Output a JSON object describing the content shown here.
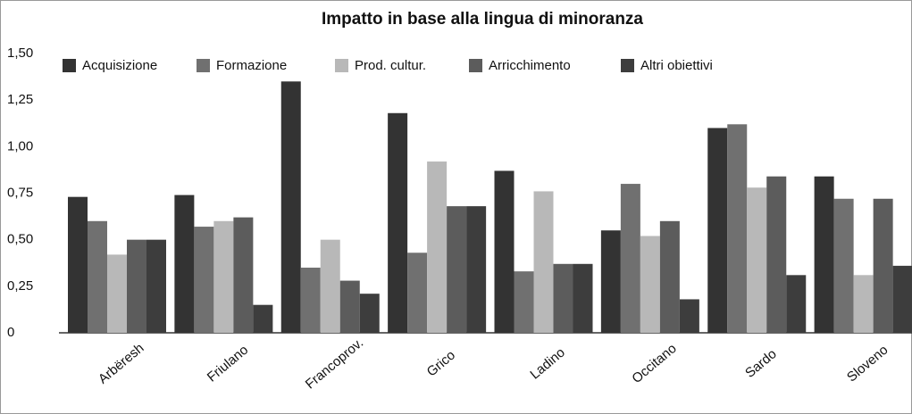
{
  "chart_data": {
    "type": "bar",
    "title": "Impatto in base alla lingua di minoranza",
    "categories": [
      "Arbëresh",
      "Friulano",
      "Francoprov.",
      "Grico",
      "Ladino",
      "Occitano",
      "Sardo",
      "Sloveno"
    ],
    "series": [
      {
        "name": "Acquisizione",
        "color": "#333333",
        "values": [
          0.73,
          0.74,
          1.35,
          1.18,
          0.87,
          0.55,
          1.1,
          0.84
        ]
      },
      {
        "name": "Formazione",
        "color": "#707070",
        "values": [
          0.6,
          0.57,
          0.35,
          0.43,
          0.33,
          0.8,
          1.12,
          0.72
        ]
      },
      {
        "name": "Prod. cultur.",
        "color": "#b8b8b8",
        "values": [
          0.42,
          0.6,
          0.5,
          0.92,
          0.76,
          0.52,
          0.78,
          0.31
        ]
      },
      {
        "name": "Arricchimento",
        "color": "#5c5c5c",
        "values": [
          0.5,
          0.62,
          0.28,
          0.68,
          0.37,
          0.6,
          0.84,
          0.72
        ]
      },
      {
        "name": "Altri obiettivi",
        "color": "#3d3d3d",
        "values": [
          0.5,
          0.15,
          0.21,
          0.68,
          0.37,
          0.18,
          0.31,
          0.36
        ]
      }
    ],
    "ylim": [
      0,
      1.5
    ],
    "yticks": [
      0,
      {
        "value": 0.25,
        "label": "0,25"
      },
      {
        "value": 0.5,
        "label": "0,50"
      },
      {
        "value": 0.75,
        "label": "0,75"
      },
      {
        "value": 1.0,
        "label": "1,00"
      },
      {
        "value": 1.25,
        "label": "1,25"
      },
      {
        "value": 1.5,
        "label": "1,50"
      }
    ],
    "grid": false,
    "legend": "top"
  }
}
